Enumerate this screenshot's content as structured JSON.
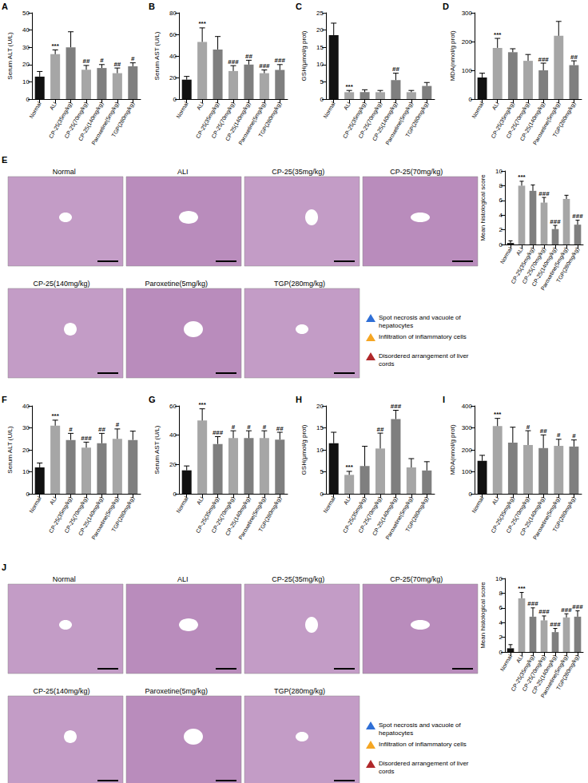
{
  "chart_data": [
    {
      "type": "bar",
      "title": "A",
      "ylabel": "Serum ALT (U/L)",
      "categories": [
        "Normal",
        "ALI",
        "CP-25(35mg/kg)",
        "CP-25(70mg/kg)",
        "CP-25(140mg/kg)",
        "Paroxetine(5mg/kg)",
        "TGP(280mg/kg)"
      ],
      "values": [
        13,
        26,
        30,
        17,
        18,
        15,
        19
      ],
      "errors": [
        3,
        2.5,
        9,
        2.5,
        2,
        3,
        2
      ],
      "annotations": [
        null,
        "***",
        null,
        "##",
        "#",
        "##",
        "#"
      ],
      "colors": [
        "#111111",
        "#a6a6a6",
        "#7f7f7f",
        "#a6a6a6",
        "#7f7f7f",
        "#a6a6a6",
        "#7f7f7f"
      ],
      "ylim": [
        0,
        50
      ],
      "yticks": [
        0,
        10,
        20,
        30,
        40,
        50
      ]
    },
    {
      "type": "bar",
      "title": "B",
      "ylabel": "Serum AST (U/L)",
      "categories": [
        "Normal",
        "ALI",
        "CP-25(35mg/kg)",
        "CP-25(70mg/kg)",
        "CP-25(140mg/kg)",
        "Paroxetine(5mg/kg)",
        "TGP(280mg/kg)"
      ],
      "values": [
        18,
        53,
        46,
        26,
        32,
        24,
        27
      ],
      "errors": [
        3,
        13,
        12,
        5,
        4,
        3,
        5
      ],
      "annotations": [
        null,
        "***",
        null,
        "###",
        "##",
        "###",
        "###"
      ],
      "colors": [
        "#111111",
        "#a6a6a6",
        "#7f7f7f",
        "#a6a6a6",
        "#7f7f7f",
        "#a6a6a6",
        "#7f7f7f"
      ],
      "ylim": [
        0,
        80
      ],
      "yticks": [
        0,
        20,
        40,
        60,
        80
      ]
    },
    {
      "type": "bar",
      "title": "C",
      "ylabel": "GSH(μmol/g prot)",
      "categories": [
        "Normal",
        "ALI",
        "CP-25(35mg/kg)",
        "CP-25(70mg/kg)",
        "CP-25(140mg/kg)",
        "Paroxetine(5mg/kg)",
        "TGP(280mg/kg)"
      ],
      "values": [
        18.5,
        2,
        2,
        2,
        5.5,
        2,
        3.8
      ],
      "errors": [
        3.5,
        0.5,
        0.7,
        0.5,
        2,
        0.5,
        1
      ],
      "annotations": [
        null,
        "***",
        null,
        null,
        "##",
        null,
        null
      ],
      "colors": [
        "#111111",
        "#a6a6a6",
        "#7f7f7f",
        "#a6a6a6",
        "#7f7f7f",
        "#a6a6a6",
        "#7f7f7f"
      ],
      "ylim": [
        0,
        25
      ],
      "yticks": [
        0,
        5,
        10,
        15,
        20,
        25
      ]
    },
    {
      "type": "bar",
      "title": "D",
      "ylabel": "MDA(nmol/g prot)",
      "categories": [
        "Normal",
        "ALI",
        "CP-25(35mg/kg)",
        "CP-25(70mg/kg)",
        "CP-25(140mg/kg)",
        "Paroxetine(5mg/kg)",
        "TGP(280mg/kg)"
      ],
      "values": [
        75,
        178,
        163,
        133,
        100,
        220,
        118
      ],
      "errors": [
        15,
        33,
        12,
        22,
        25,
        50,
        15
      ],
      "annotations": [
        null,
        "***",
        null,
        null,
        "###",
        null,
        "##"
      ],
      "colors": [
        "#111111",
        "#a6a6a6",
        "#7f7f7f",
        "#a6a6a6",
        "#7f7f7f",
        "#a6a6a6",
        "#7f7f7f"
      ],
      "ylim": [
        0,
        300
      ],
      "yticks": [
        0,
        100,
        200,
        300
      ]
    },
    {
      "type": "bar",
      "title": "",
      "ylabel": "Mean histological score",
      "categories": [
        "Normal",
        "ALI",
        "CP-25(35mg/kg)",
        "CP-25(70mg/kg)",
        "CP-25(140mg/kg)",
        "Paroxetine(5mg/kg)",
        "TGP(280mg/kg)"
      ],
      "values": [
        0.2,
        8,
        7.3,
        5.7,
        2.1,
        6.2,
        2.7
      ],
      "errors": [
        0.3,
        0.6,
        0.8,
        0.7,
        0.5,
        0.5,
        0.6
      ],
      "annotations": [
        null,
        "***",
        null,
        "###",
        "###",
        null,
        "###"
      ],
      "colors": [
        "#111111",
        "#a6a6a6",
        "#7f7f7f",
        "#a6a6a6",
        "#7f7f7f",
        "#a6a6a6",
        "#7f7f7f"
      ],
      "ylim": [
        0,
        10
      ],
      "yticks": [
        0,
        2,
        4,
        6,
        8,
        10
      ]
    },
    {
      "type": "bar",
      "title": "F",
      "ylabel": "Serum ALT (U/L)",
      "categories": [
        "Normal",
        "ALI",
        "CP-25(35mg/kg)",
        "CP-25(70mg/kg)",
        "CP-25(140mg/kg)",
        "Paroxetine(5mg/kg)",
        "TGP(280mg/kg)"
      ],
      "values": [
        12,
        31,
        24.5,
        21,
        23,
        25,
        24.5
      ],
      "errors": [
        2,
        2.5,
        3,
        2.5,
        4.5,
        4.5,
        4
      ],
      "annotations": [
        null,
        "***",
        "#",
        "###",
        "##",
        "#",
        null
      ],
      "colors": [
        "#111111",
        "#a6a6a6",
        "#7f7f7f",
        "#a6a6a6",
        "#7f7f7f",
        "#a6a6a6",
        "#7f7f7f"
      ],
      "ylim": [
        0,
        40
      ],
      "yticks": [
        0,
        10,
        20,
        30,
        40
      ]
    },
    {
      "type": "bar",
      "title": "G",
      "ylabel": "Serum AST (U/L)",
      "categories": [
        "Normal",
        "ALI",
        "CP-25(35mg/kg)",
        "CP-25(70mg/kg)",
        "CP-25(140mg/kg)",
        "Paroxetine(5mg/kg)",
        "TGP(280mg/kg)"
      ],
      "values": [
        16,
        50,
        34,
        38,
        38,
        38,
        37
      ],
      "errors": [
        3,
        8,
        5,
        5,
        5,
        5,
        5
      ],
      "annotations": [
        null,
        "***",
        "###",
        "#",
        "#",
        "#",
        "##"
      ],
      "colors": [
        "#111111",
        "#a6a6a6",
        "#7f7f7f",
        "#a6a6a6",
        "#7f7f7f",
        "#a6a6a6",
        "#7f7f7f"
      ],
      "ylim": [
        0,
        60
      ],
      "yticks": [
        0,
        20,
        40,
        60
      ]
    },
    {
      "type": "bar",
      "title": "H",
      "ylabel": "GSH(μmol/g prot)",
      "categories": [
        "Normal",
        "ALI",
        "CP-25(35mg/kg)",
        "CP-25(70mg/kg)",
        "CP-25(140mg/kg)",
        "Paroxetine(5mg/kg)",
        "TGP(280mg/kg)"
      ],
      "values": [
        11.5,
        4.3,
        6.3,
        10.3,
        17,
        6,
        5.3
      ],
      "errors": [
        2.5,
        0.8,
        4.5,
        3.5,
        2,
        2,
        2
      ],
      "annotations": [
        null,
        "***",
        null,
        "##",
        "###",
        null,
        null
      ],
      "colors": [
        "#111111",
        "#a6a6a6",
        "#7f7f7f",
        "#a6a6a6",
        "#7f7f7f",
        "#a6a6a6",
        "#7f7f7f"
      ],
      "ylim": [
        0,
        20
      ],
      "yticks": [
        0,
        5,
        10,
        15,
        20
      ]
    },
    {
      "type": "bar",
      "title": "I",
      "ylabel": "MDA(nmol/g prot)",
      "categories": [
        "Normal",
        "ALI",
        "CP-25(35mg/kg)",
        "CP-25(70mg/kg)",
        "CP-25(140mg/kg)",
        "Paroxetine(5mg/kg)",
        "TGP(280mg/kg)"
      ],
      "values": [
        150,
        308,
        233,
        222,
        208,
        218,
        215
      ],
      "errors": [
        25,
        35,
        70,
        65,
        60,
        30,
        30
      ],
      "annotations": [
        null,
        "***",
        null,
        "#",
        "##",
        "#",
        "#"
      ],
      "colors": [
        "#111111",
        "#a6a6a6",
        "#7f7f7f",
        "#a6a6a6",
        "#7f7f7f",
        "#a6a6a6",
        "#7f7f7f"
      ],
      "ylim": [
        0,
        400
      ],
      "yticks": [
        0,
        100,
        200,
        300,
        400
      ]
    },
    {
      "type": "bar",
      "title": "",
      "ylabel": "Mean histological score",
      "categories": [
        "Normal",
        "ALI",
        "CP-25(35mg/kg)",
        "CP-25(70mg/kg)",
        "CP-25(140mg/kg)",
        "Paroxetine(5mg/kg)",
        "TGP(280mg/kg)"
      ],
      "values": [
        0.5,
        7.3,
        4.8,
        4.3,
        2.7,
        4.7,
        4.8
      ],
      "errors": [
        0.5,
        0.8,
        1.2,
        0.6,
        0.5,
        0.5,
        0.8
      ],
      "annotations": [
        null,
        "***",
        "###",
        "###",
        "###",
        "###",
        "###"
      ],
      "colors": [
        "#111111",
        "#a6a6a6",
        "#7f7f7f",
        "#a6a6a6",
        "#7f7f7f",
        "#a6a6a6",
        "#7f7f7f"
      ],
      "ylim": [
        0,
        10
      ],
      "yticks": [
        0,
        2,
        4,
        6,
        8,
        10
      ]
    }
  ],
  "histology": [
    {
      "panel": "E",
      "images": [
        "Normal",
        "ALI",
        "CP-25(35mg/kg)",
        "CP-25(70mg/kg)",
        "CP-25(140mg/kg)",
        "Paroxetine(5mg/kg)",
        "TGP(280mg/kg)"
      ],
      "legend": [
        {
          "label": "Spot necrosis and vacuole of hepatocytes",
          "color": "#2f6fd6"
        },
        {
          "label": "Infiltration of inflammatory cells",
          "color": "#f5a623"
        },
        {
          "label": "Disordered arrangement of liver cords",
          "color": "#b0282a"
        }
      ]
    },
    {
      "panel": "J",
      "images": [
        "Normal",
        "ALI",
        "CP-25(35mg/kg)",
        "CP-25(70mg/kg)",
        "CP-25(140mg/kg)",
        "Paroxetine(5mg/kg)",
        "TGP(280mg/kg)"
      ],
      "legend": [
        {
          "label": "Spot necrosis and vacuole of hepatocytes",
          "color": "#2f6fd6"
        },
        {
          "label": "Infiltration of inflammatory cells",
          "color": "#f5a623"
        },
        {
          "label": "Disordered arrangement of liver cords",
          "color": "#b0282a"
        }
      ]
    }
  ]
}
